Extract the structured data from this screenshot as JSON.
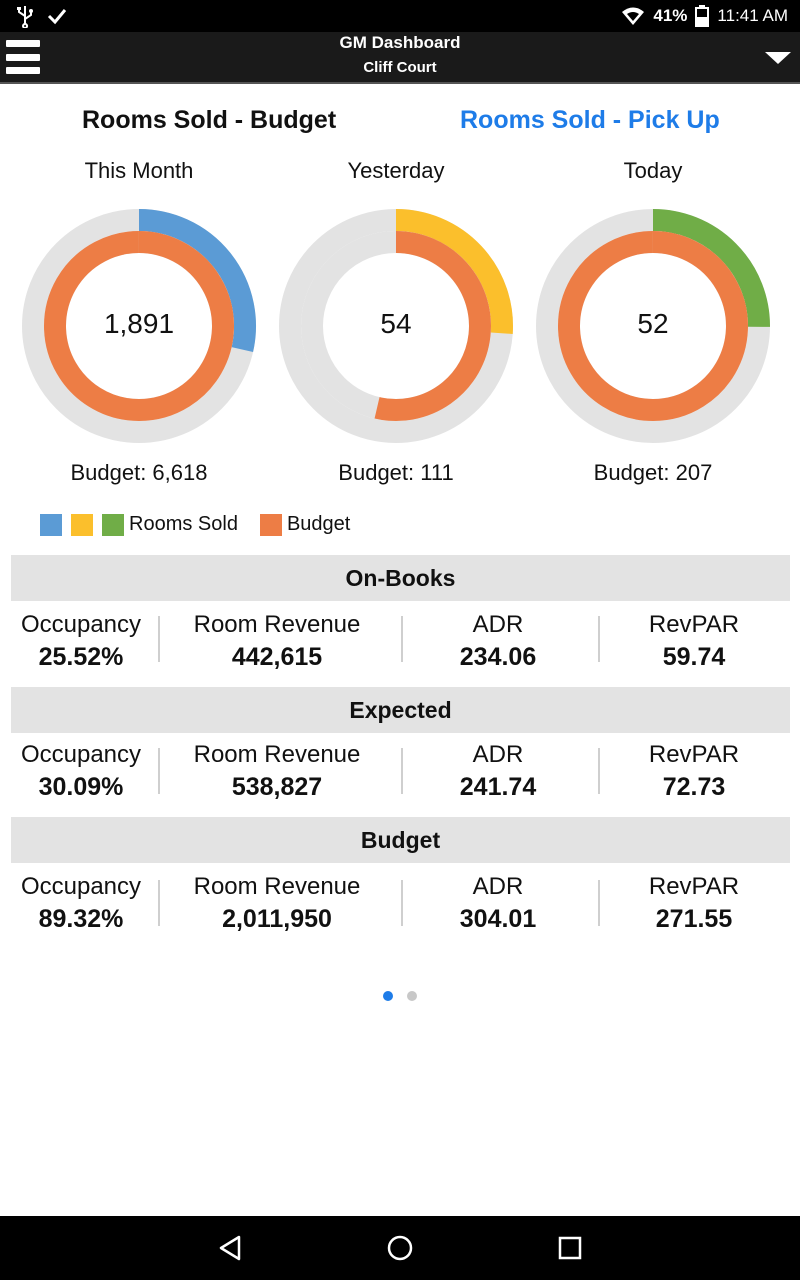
{
  "status_bar": {
    "icons_left": [
      "usb-icon",
      "check-icon"
    ],
    "wifi_icon": "wifi-icon",
    "battery_percent": "41%",
    "battery_icon": "battery-icon",
    "time": "11:41 AM"
  },
  "app_bar": {
    "title": "GM Dashboard",
    "subtitle": "Cliff Court",
    "menu_icon": "hamburger-menu-icon",
    "dropdown_icon": "triangle-down-icon"
  },
  "tabs": {
    "budget": "Rooms Sold - Budget",
    "pickup": "Rooms Sold - Pick Up",
    "active_color": "#111111",
    "link_color": "#1e7ce8"
  },
  "chart_data": [
    {
      "type": "pie",
      "title": "This Month",
      "center_label": "1,891",
      "budget_label": "Budget: 6,618",
      "series": [
        {
          "name": "Rooms Sold",
          "value": 1891,
          "max": 6618,
          "color": "#5b9bd5"
        },
        {
          "name": "Budget",
          "value": 6618,
          "max": 6618,
          "color": "#ed7d45"
        }
      ]
    },
    {
      "type": "pie",
      "title": "Yesterday",
      "center_label": "54",
      "budget_label": "Budget: 111",
      "series": [
        {
          "name": "Rooms Sold",
          "value": 54,
          "max": 207,
          "color": "#fbbf2c"
        },
        {
          "name": "Budget",
          "value": 111,
          "max": 207,
          "color": "#ed7d45"
        }
      ]
    },
    {
      "type": "pie",
      "title": "Today",
      "center_label": "52",
      "budget_label": "Budget: 207",
      "series": [
        {
          "name": "Rooms Sold",
          "value": 52,
          "max": 207,
          "color": "#70ad47"
        },
        {
          "name": "Budget",
          "value": 207,
          "max": 207,
          "color": "#ed7d45"
        }
      ]
    }
  ],
  "legend": {
    "rooms_sold": "Rooms Sold",
    "budget": "Budget",
    "rooms_sold_colors": [
      "#5b9bd5",
      "#fbbf2c",
      "#70ad47"
    ],
    "budget_color": "#ed7d45",
    "track_color": "#e3e3e3"
  },
  "sections": [
    {
      "title": "On-Books",
      "metrics": [
        {
          "label": "Occupancy",
          "value": "25.52%"
        },
        {
          "label": "Room Revenue",
          "value": "442,615"
        },
        {
          "label": "ADR",
          "value": "234.06"
        },
        {
          "label": "RevPAR",
          "value": "59.74"
        }
      ]
    },
    {
      "title": "Expected",
      "metrics": [
        {
          "label": "Occupancy",
          "value": "30.09%"
        },
        {
          "label": "Room Revenue",
          "value": "538,827"
        },
        {
          "label": "ADR",
          "value": "241.74"
        },
        {
          "label": "RevPAR",
          "value": "72.73"
        }
      ]
    },
    {
      "title": "Budget",
      "metrics": [
        {
          "label": "Occupancy",
          "value": "89.32%"
        },
        {
          "label": "Room Revenue",
          "value": "2,011,950"
        },
        {
          "label": "ADR",
          "value": "304.01"
        },
        {
          "label": "RevPAR",
          "value": "271.55"
        }
      ]
    }
  ],
  "pager": {
    "pages": 2,
    "current": 1,
    "active_color": "#1e7ce8",
    "inactive_color": "#c8c8c8"
  },
  "nav_bar": {
    "back_icon": "back-triangle-icon",
    "home_icon": "home-circle-icon",
    "recents_icon": "recents-square-icon"
  }
}
